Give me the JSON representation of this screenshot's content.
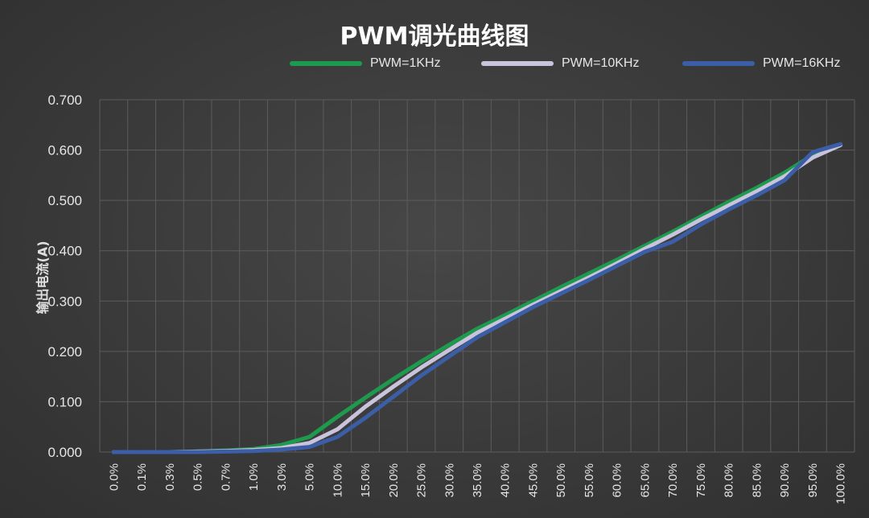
{
  "chart_data": {
    "type": "line",
    "title": "PWM调光曲线图",
    "ylabel": "输出电流(A)",
    "xlabel": "",
    "ylim": [
      0,
      0.7
    ],
    "y_ticks": [
      "0.000",
      "0.100",
      "0.200",
      "0.300",
      "0.400",
      "0.500",
      "0.600",
      "0.700"
    ],
    "categories": [
      "0.0%",
      "0.1%",
      "0.3%",
      "0.5%",
      "0.7%",
      "1.0%",
      "3.0%",
      "5.0%",
      "10.0%",
      "15.0%",
      "20.0%",
      "25.0%",
      "30.0%",
      "35.0%",
      "40.0%",
      "45.0%",
      "50.0%",
      "55.0%",
      "60.0%",
      "65.0%",
      "70.0%",
      "75.0%",
      "80.0%",
      "85.0%",
      "90.0%",
      "95.0%",
      "100.0%"
    ],
    "grid": true,
    "legend_position": "top",
    "series": [
      {
        "name": "PWM=1KHz",
        "color": "#1e9a4f",
        "values": [
          0.0,
          0.0,
          0.0,
          0.001,
          0.003,
          0.006,
          0.014,
          0.03,
          0.07,
          0.108,
          0.145,
          0.18,
          0.213,
          0.245,
          0.272,
          0.3,
          0.328,
          0.355,
          0.382,
          0.41,
          0.438,
          0.468,
          0.497,
          0.525,
          0.555,
          0.59,
          0.61
        ]
      },
      {
        "name": "PWM=10KHz",
        "color": "#c9c3dc",
        "values": [
          0.0,
          0.0,
          0.0,
          0.001,
          0.002,
          0.004,
          0.008,
          0.018,
          0.045,
          0.09,
          0.13,
          0.168,
          0.203,
          0.237,
          0.265,
          0.293,
          0.32,
          0.347,
          0.375,
          0.404,
          0.432,
          0.462,
          0.49,
          0.518,
          0.548,
          0.585,
          0.61
        ]
      },
      {
        "name": "PWM=16KHz",
        "color": "#3b5ea6",
        "values": [
          0.0,
          0.0,
          0.0,
          0.0,
          0.001,
          0.002,
          0.005,
          0.01,
          0.03,
          0.068,
          0.11,
          0.152,
          0.19,
          0.228,
          0.258,
          0.288,
          0.315,
          0.342,
          0.37,
          0.398,
          0.418,
          0.452,
          0.482,
          0.51,
          0.54,
          0.596,
          0.612
        ]
      }
    ]
  }
}
